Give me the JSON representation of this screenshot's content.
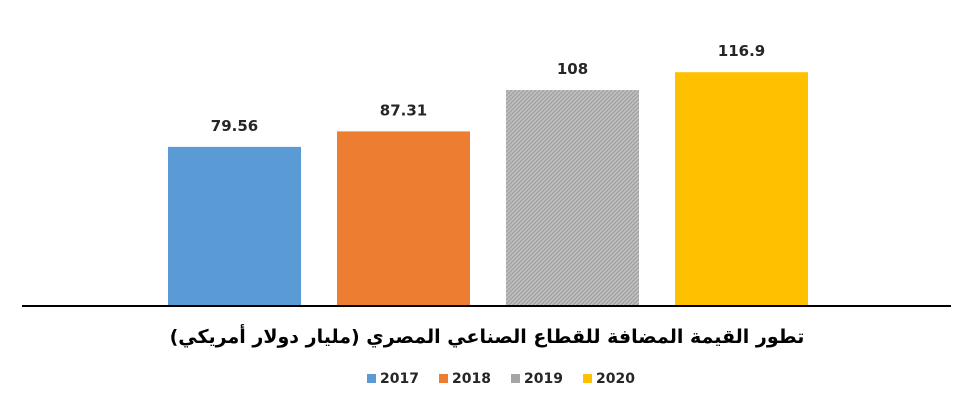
{
  "chart_data": {
    "type": "bar",
    "title": "تطور القيمة المضافة للقطاع الصناعي المصري (مليار دولار أمريكي)",
    "categories": [
      "2017",
      "2018",
      "2019",
      "2020"
    ],
    "values": [
      79.56,
      87.31,
      108,
      116.9
    ],
    "value_labels": [
      "79.56",
      "87.31",
      "108",
      "116.9"
    ],
    "colors": [
      "#5B9BD5",
      "#ED7D31",
      "#A5A5A5",
      "#FFC000"
    ],
    "pattern_on": [
      "2019"
    ],
    "ylim": [
      0,
      120
    ],
    "grid": false,
    "legend": {
      "position": "bottom",
      "entries": [
        "2017",
        "2018",
        "2019",
        "2020"
      ]
    }
  }
}
